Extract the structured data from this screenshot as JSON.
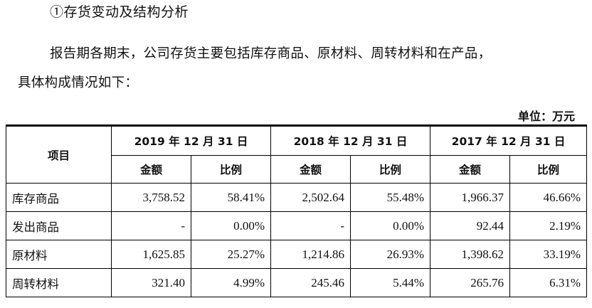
{
  "section_heading": "①存货变动及结构分析",
  "paragraph_line1": "报告期各期末，公司存货主要包括库存商品、原材料、周转材料和在产品，",
  "paragraph_line2": "具体构成情况如下：",
  "unit_label": "单位：万元",
  "table": {
    "item_header": "项目",
    "periods": [
      "2019 年 12 月 31 日",
      "2018 年 12 月 31 日",
      "2017 年 12 月 31 日"
    ],
    "sub_headers": [
      "金额",
      "比例",
      "金额",
      "比例",
      "金额",
      "比例"
    ],
    "rows": [
      {
        "label": "库存商品",
        "cells": [
          "3,758.52",
          "58.41%",
          "2,502.64",
          "55.48%",
          "1,966.37",
          "46.66%"
        ]
      },
      {
        "label": "发出商品",
        "cells": [
          "-",
          "0.00%",
          "-",
          "0.00%",
          "92.44",
          "2.19%"
        ]
      },
      {
        "label": "原材料",
        "cells": [
          "1,625.85",
          "25.27%",
          "1,214.86",
          "26.93%",
          "1,398.62",
          "33.19%"
        ]
      },
      {
        "label": "周转材料",
        "cells": [
          "321.40",
          "4.99%",
          "245.46",
          "5.44%",
          "265.76",
          "6.31%"
        ]
      }
    ]
  }
}
